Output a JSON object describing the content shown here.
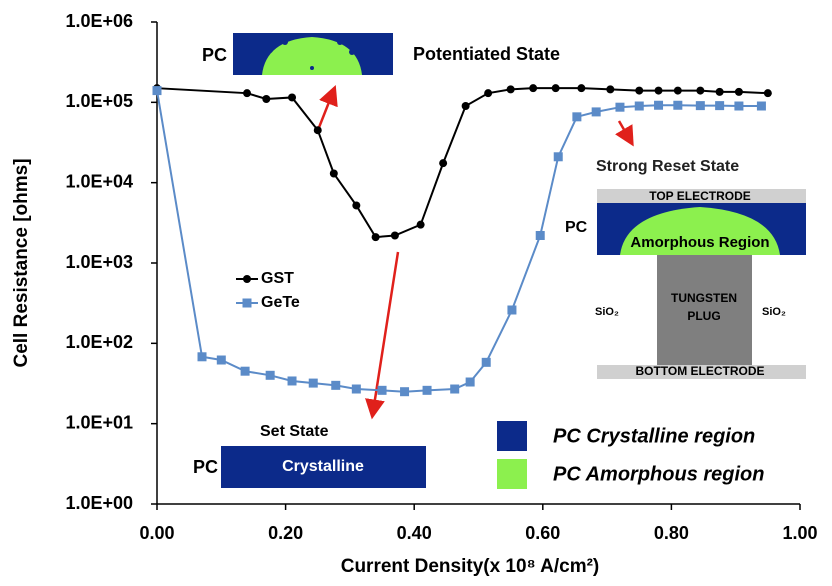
{
  "chart_data": {
    "type": "line",
    "x_label": "Current Density(x 10⁸ A/cm²)",
    "y_label": "Cell Resistance [ohms]",
    "log_y": true,
    "grid": false,
    "xlim": [
      0,
      1
    ],
    "xticks": [
      {
        "value": 0,
        "label": "0.00"
      },
      {
        "value": 0.2,
        "label": "0.20"
      },
      {
        "value": 0.4,
        "label": "0.40"
      },
      {
        "value": 0.6,
        "label": "0.60"
      },
      {
        "value": 0.8,
        "label": "0.80"
      },
      {
        "value": 1,
        "label": "1.00"
      }
    ],
    "ylim": [
      1,
      1000000
    ],
    "yticks": [
      {
        "value": 1,
        "label": "1.0E+00"
      },
      {
        "value": 10,
        "label": "1.0E+01"
      },
      {
        "value": 100,
        "label": "1.0E+02"
      },
      {
        "value": 1000,
        "label": "1.0E+03"
      },
      {
        "value": 10000,
        "label": "1.0E+04"
      },
      {
        "value": 100000,
        "label": "1.0E+05"
      },
      {
        "value": 1000000,
        "label": "1.0E+06"
      }
    ],
    "series": [
      {
        "name": "GST",
        "color": "#000000",
        "marker": "circle",
        "x": [
          0,
          0.14,
          0.17,
          0.21,
          0.25,
          0.275,
          0.31,
          0.34,
          0.37,
          0.41,
          0.445,
          0.48,
          0.515,
          0.55,
          0.585,
          0.62,
          0.66,
          0.705,
          0.75,
          0.78,
          0.81,
          0.845,
          0.875,
          0.905,
          0.95
        ],
        "values": [
          150000,
          130000,
          110000,
          115000,
          45000,
          13000,
          5200,
          2100,
          2200,
          3000,
          17500,
          90000,
          130000,
          145000,
          150000,
          150000,
          150000,
          145000,
          140000,
          140000,
          140000,
          140000,
          135000,
          135000,
          130000
        ]
      },
      {
        "name": "GeTe",
        "color": "#5b8bc8",
        "marker": "square",
        "x": [
          0,
          0.07,
          0.1,
          0.137,
          0.176,
          0.21,
          0.243,
          0.278,
          0.31,
          0.35,
          0.385,
          0.42,
          0.463,
          0.487,
          0.512,
          0.552,
          0.596,
          0.624,
          0.653,
          0.683,
          0.72,
          0.75,
          0.78,
          0.81,
          0.845,
          0.875,
          0.905,
          0.94
        ],
        "values": [
          140000,
          68,
          62,
          45,
          40,
          34,
          32,
          30,
          27,
          26,
          25,
          26,
          27,
          33,
          58,
          260,
          2200,
          21000,
          66000,
          76000,
          87000,
          90000,
          92000,
          92000,
          91000,
          91000,
          90000,
          90000
        ]
      }
    ],
    "annotations": [
      "PC",
      "Potentiated State",
      "Strong Reset State",
      "TOP ELECTRODE",
      "PC",
      "Amorphous Region",
      "TUNGSTEN",
      "PLUG",
      "SiO₂",
      "SiO₂",
      "BOTTOM ELECTRODE",
      "Set State",
      "PC",
      "Crystalline",
      "PC Crystalline region",
      "PC Amorphous region"
    ]
  }
}
